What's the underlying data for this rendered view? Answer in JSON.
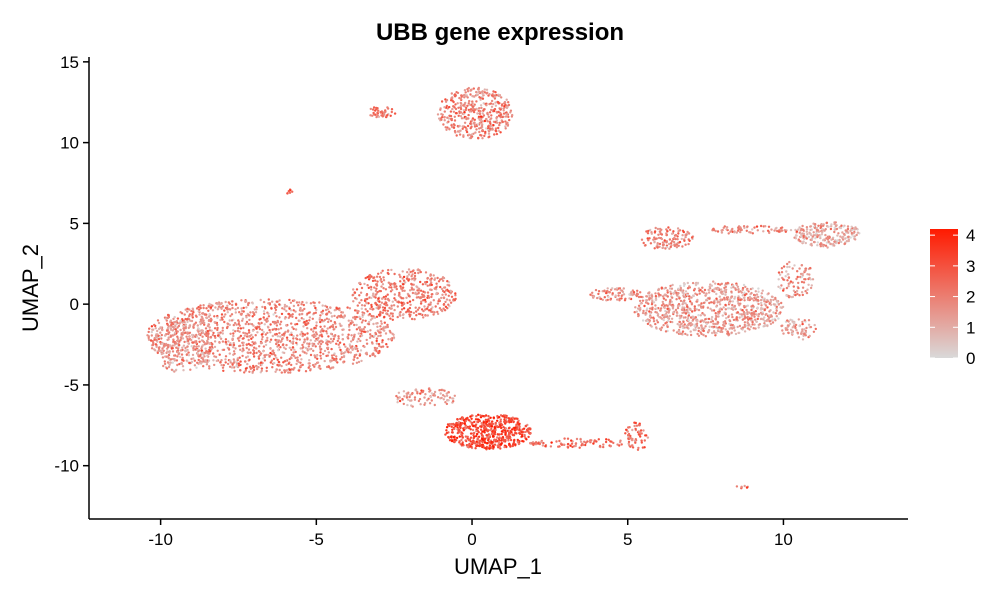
{
  "chart_data": {
    "type": "scatter",
    "title": "UBB gene expression",
    "xlabel": "UMAP_1",
    "ylabel": "UMAP_2",
    "xlim": [
      -12.3,
      14.0
    ],
    "ylim": [
      -13.3,
      15.3
    ],
    "x_ticks": [
      -10,
      -5,
      0,
      5,
      10
    ],
    "y_ticks": [
      15,
      10,
      5,
      0,
      -5,
      -10
    ],
    "grid": false,
    "legend_position": "right",
    "color_scale": {
      "min": 0,
      "max": 4.2,
      "ticks": [
        4,
        3,
        2,
        1,
        0
      ],
      "low_color": "#d9d9d9",
      "high_color": "#ff1a00"
    },
    "clusters": [
      {
        "cx": -6.5,
        "cy": -2.0,
        "rx": 4.0,
        "ry": 2.3,
        "mean_expr": 1.8,
        "n": 1400
      },
      {
        "cx": -2.2,
        "cy": 0.6,
        "rx": 1.7,
        "ry": 1.6,
        "mean_expr": 2.0,
        "n": 450
      },
      {
        "cx": -9.3,
        "cy": -2.6,
        "rx": 1.0,
        "ry": 1.7,
        "mean_expr": 1.4,
        "n": 200
      },
      {
        "cx": 0.1,
        "cy": 11.8,
        "rx": 1.2,
        "ry": 1.6,
        "mean_expr": 1.9,
        "n": 420
      },
      {
        "cx": -2.9,
        "cy": 11.9,
        "rx": 0.5,
        "ry": 0.35,
        "mean_expr": 2.3,
        "n": 40
      },
      {
        "cx": -5.9,
        "cy": 7.0,
        "rx": 0.15,
        "ry": 0.15,
        "mean_expr": 2.5,
        "n": 8
      },
      {
        "cx": 0.5,
        "cy": -7.9,
        "rx": 1.4,
        "ry": 1.1,
        "mean_expr": 3.1,
        "n": 550
      },
      {
        "cx": -1.5,
        "cy": -5.8,
        "rx": 1.0,
        "ry": 0.6,
        "mean_expr": 1.6,
        "n": 90
      },
      {
        "cx": 3.4,
        "cy": -8.6,
        "rx": 1.6,
        "ry": 0.3,
        "mean_expr": 2.4,
        "n": 90
      },
      {
        "cx": 5.3,
        "cy": -8.2,
        "rx": 0.4,
        "ry": 0.9,
        "mean_expr": 2.3,
        "n": 60
      },
      {
        "cx": 7.6,
        "cy": -0.3,
        "rx": 2.4,
        "ry": 1.7,
        "mean_expr": 1.4,
        "n": 900
      },
      {
        "cx": 6.2,
        "cy": 4.1,
        "rx": 0.9,
        "ry": 0.7,
        "mean_expr": 1.9,
        "n": 120
      },
      {
        "cx": 4.6,
        "cy": 0.6,
        "rx": 0.9,
        "ry": 0.4,
        "mean_expr": 1.8,
        "n": 80
      },
      {
        "cx": 11.4,
        "cy": 4.3,
        "rx": 1.1,
        "ry": 0.8,
        "mean_expr": 1.2,
        "n": 220
      },
      {
        "cx": 8.9,
        "cy": 4.6,
        "rx": 1.4,
        "ry": 0.25,
        "mean_expr": 1.6,
        "n": 70
      },
      {
        "cx": 10.4,
        "cy": 1.5,
        "rx": 0.6,
        "ry": 1.2,
        "mean_expr": 1.5,
        "n": 90
      },
      {
        "cx": 10.5,
        "cy": -1.5,
        "rx": 0.6,
        "ry": 0.7,
        "mean_expr": 1.3,
        "n": 70
      },
      {
        "cx": 8.7,
        "cy": -11.3,
        "rx": 0.2,
        "ry": 0.1,
        "mean_expr": 2.5,
        "n": 8
      }
    ]
  }
}
